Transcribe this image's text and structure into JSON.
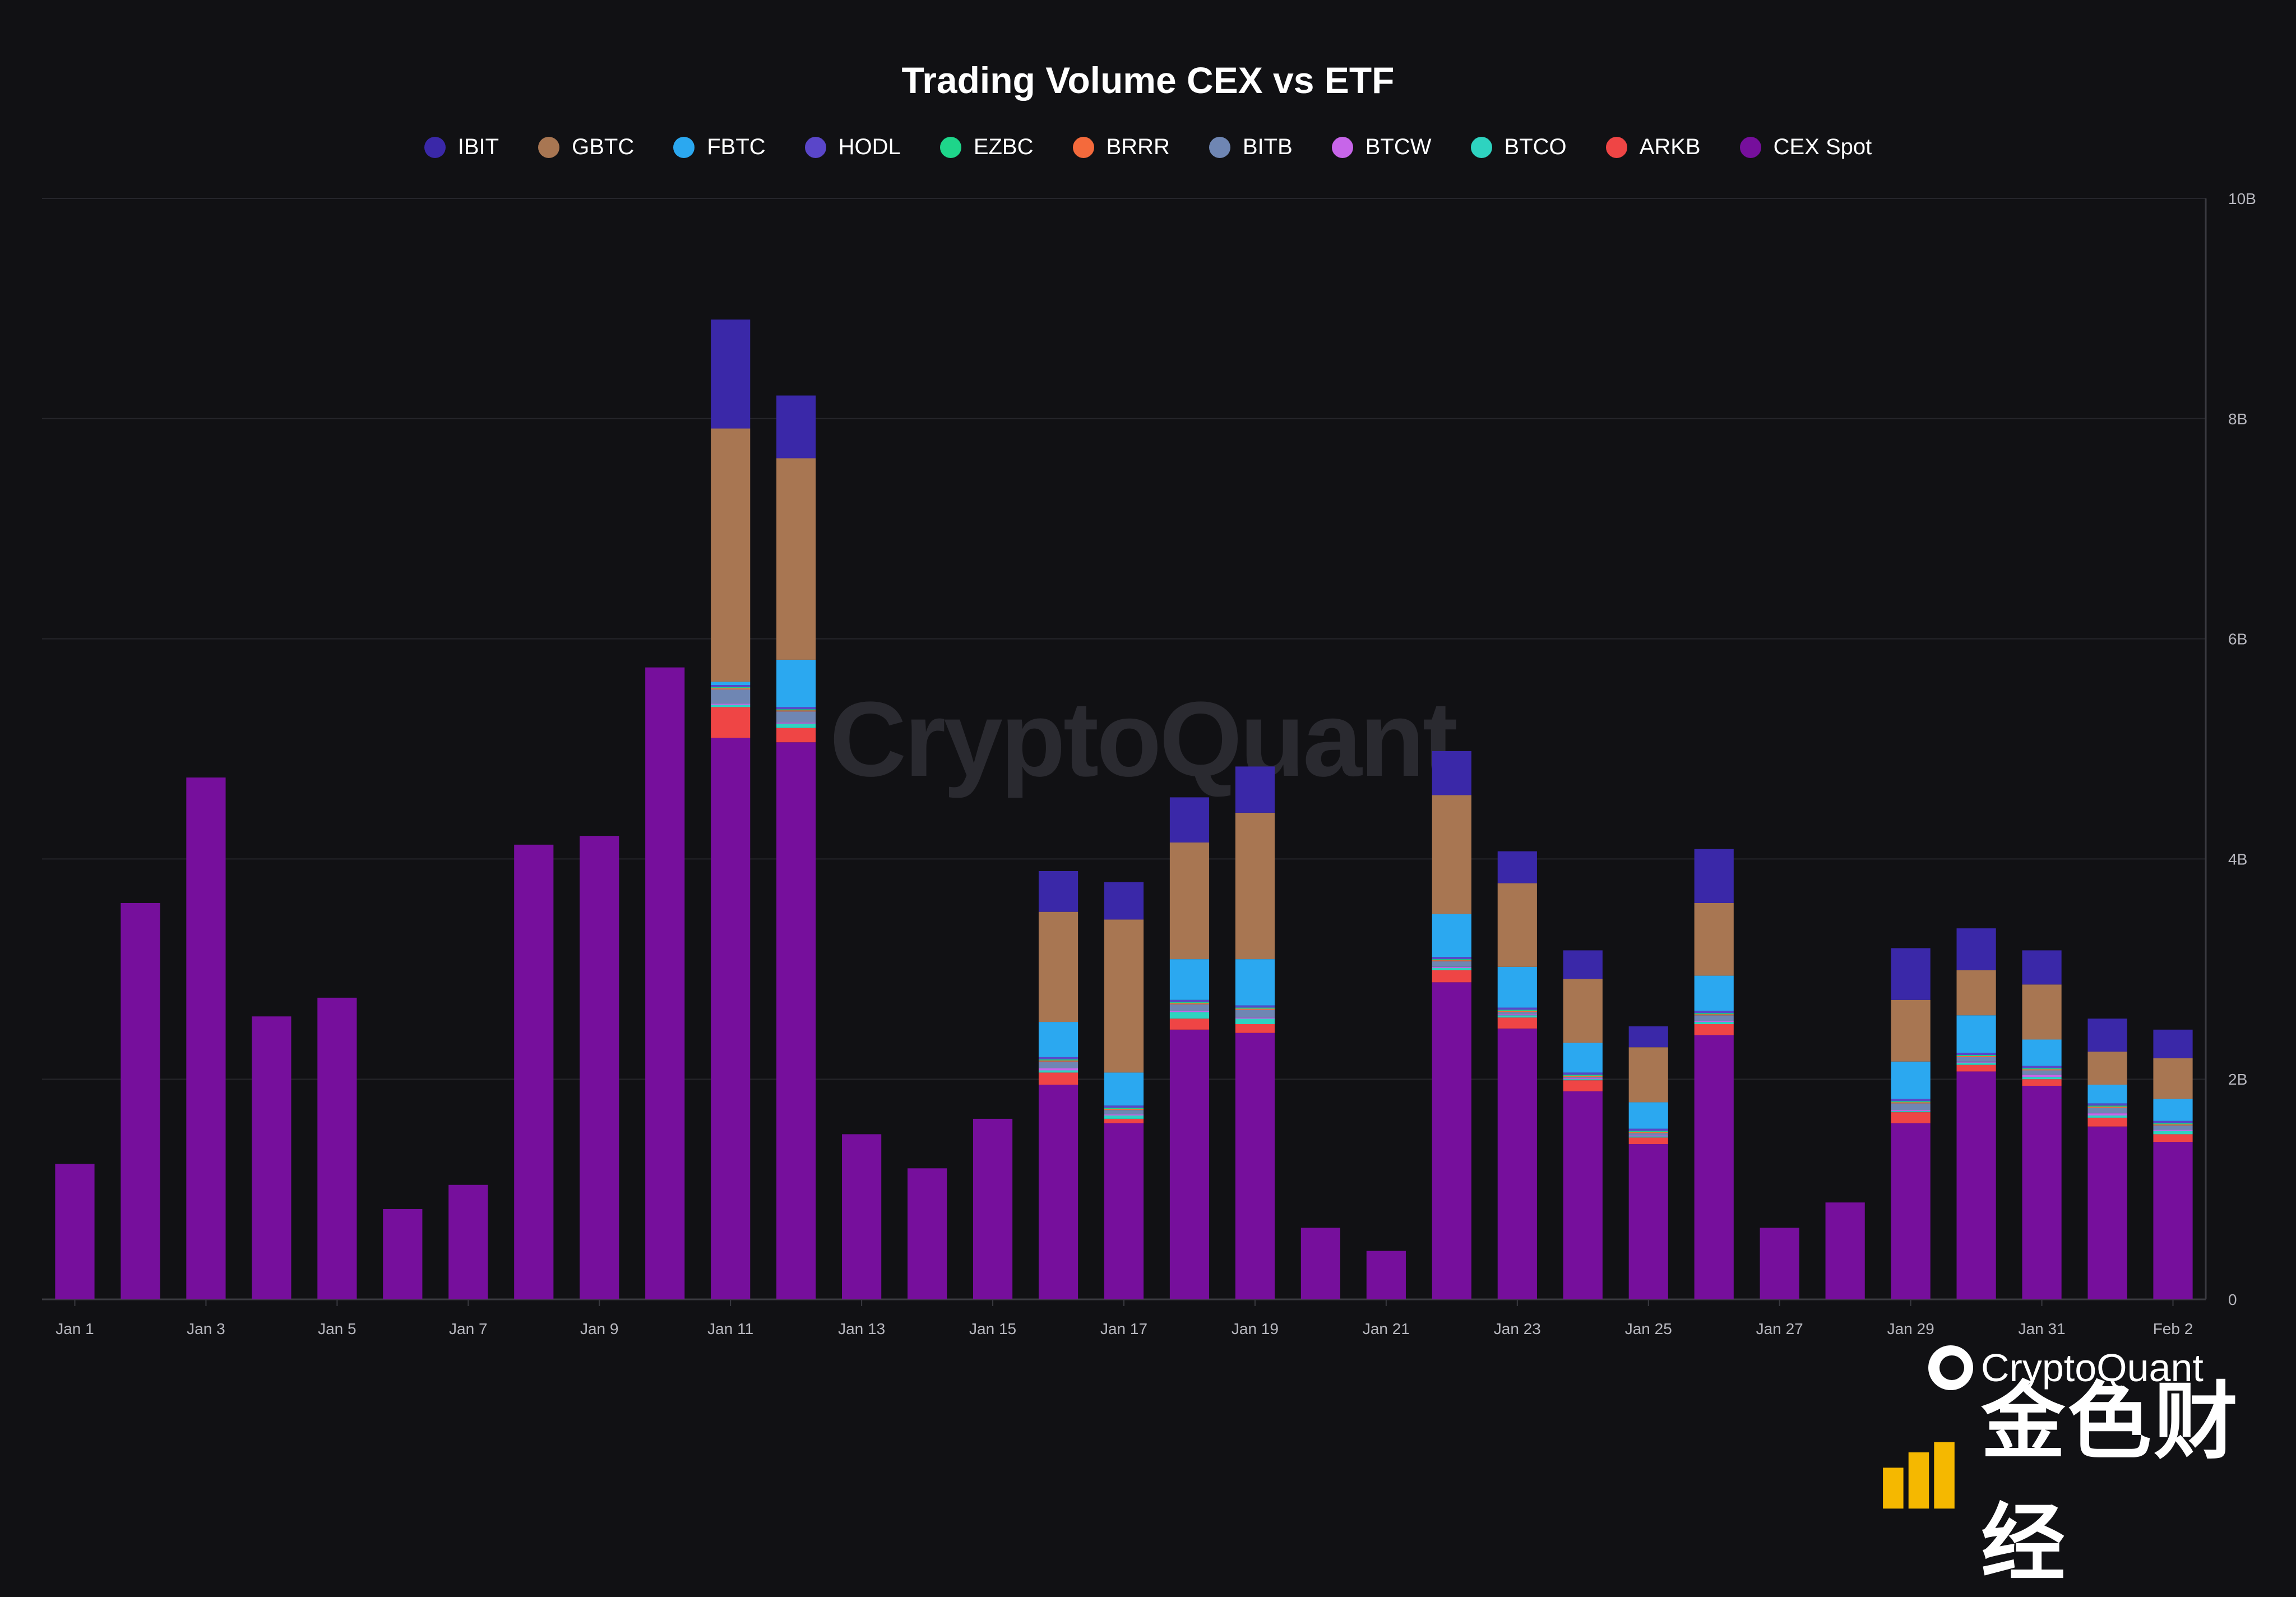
{
  "colors": {
    "IBIT": "#3a28a8",
    "GBTC": "#a87652",
    "FBTC": "#2ba8f0",
    "HODL": "#5a46c9",
    "EZBC": "#1ed58a",
    "BRRR": "#f46a3c",
    "BITB": "#6f86b3",
    "BTCW": "#c765e9",
    "BTCO": "#2ed3c0",
    "ARKB": "#ef4545",
    "CEX Spot": "#760f9c",
    "background": "#111114",
    "grid": "#26262b"
  },
  "legend": [
    {
      "name": "IBIT",
      "color": "#3a28a8"
    },
    {
      "name": "GBTC",
      "color": "#a87652"
    },
    {
      "name": "FBTC",
      "color": "#2ba8f0"
    },
    {
      "name": "HODL",
      "color": "#5a46c9"
    },
    {
      "name": "EZBC",
      "color": "#1ed58a"
    },
    {
      "name": "BRRR",
      "color": "#f46a3c"
    },
    {
      "name": "BITB",
      "color": "#6f86b3"
    },
    {
      "name": "BTCW",
      "color": "#c765e9"
    },
    {
      "name": "BTCO",
      "color": "#2ed3c0"
    },
    {
      "name": "ARKB",
      "color": "#ef4545"
    },
    {
      "name": "CEX Spot",
      "color": "#760f9c"
    }
  ],
  "watermark": "CryptoQuant",
  "brand": "CryptoQuant",
  "jinse_brand": "金色财经",
  "chart_data": {
    "type": "bar",
    "stacked": true,
    "title": "Trading Volume CEX vs ETF",
    "xlabel": "",
    "ylabel": "",
    "ylim": [
      0,
      10
    ],
    "y_unit": "B",
    "y_ticks": [
      "0",
      "2B",
      "4B",
      "6B",
      "8B",
      "10B"
    ],
    "y_axis_side": "right",
    "grid": true,
    "legend_position": "top",
    "x_tick_labels": [
      "Jan 1",
      "Jan 3",
      "Jan 5",
      "Jan 7",
      "Jan 9",
      "Jan 11",
      "Jan 13",
      "Jan 15",
      "Jan 17",
      "Jan 19",
      "Jan 21",
      "Jan 23",
      "Jan 25",
      "Jan 27",
      "Jan 29",
      "Jan 31",
      "Feb 2"
    ],
    "categories": [
      "Jan 1",
      "Jan 2",
      "Jan 3",
      "Jan 4",
      "Jan 5",
      "Jan 6",
      "Jan 7",
      "Jan 8",
      "Jan 9",
      "Jan 10",
      "Jan 11",
      "Jan 12",
      "Jan 13",
      "Jan 14",
      "Jan 15",
      "Jan 16",
      "Jan 17",
      "Jan 18",
      "Jan 19",
      "Jan 20",
      "Jan 21",
      "Jan 22",
      "Jan 23",
      "Jan 24",
      "Jan 25",
      "Jan 26",
      "Jan 27",
      "Jan 28",
      "Jan 29",
      "Jan 30",
      "Jan 31",
      "Feb 1",
      "Feb 2"
    ],
    "series": [
      {
        "name": "CEX Spot",
        "values": [
          1.23,
          3.6,
          4.74,
          2.57,
          2.74,
          0.82,
          1.04,
          4.13,
          4.21,
          5.74,
          5.1,
          5.06,
          1.5,
          1.19,
          1.64,
          1.95,
          1.6,
          2.45,
          2.42,
          0.65,
          0.44,
          2.88,
          2.46,
          1.89,
          1.41,
          2.4,
          0.65,
          0.88,
          1.6,
          2.07,
          1.94,
          1.57,
          1.43
        ]
      },
      {
        "name": "ARKB",
        "values": [
          0,
          0,
          0,
          0,
          0,
          0,
          0,
          0,
          0,
          0,
          0.28,
          0.13,
          0,
          0,
          0,
          0.11,
          0.04,
          0.1,
          0.08,
          0,
          0,
          0.11,
          0.1,
          0.1,
          0.06,
          0.1,
          0,
          0,
          0.1,
          0.06,
          0.06,
          0.08,
          0.07
        ]
      },
      {
        "name": "BTCO",
        "values": [
          0,
          0,
          0,
          0,
          0,
          0,
          0,
          0,
          0,
          0,
          0.02,
          0.04,
          0,
          0,
          0,
          0.02,
          0.03,
          0.06,
          0.05,
          0,
          0,
          0.02,
          0.02,
          0.01,
          0.01,
          0.02,
          0,
          0,
          0.01,
          0.02,
          0.02,
          0.02,
          0.03
        ]
      },
      {
        "name": "BTCW",
        "values": [
          0,
          0,
          0,
          0,
          0,
          0,
          0,
          0,
          0,
          0,
          0.01,
          0.01,
          0,
          0,
          0,
          0.02,
          0.01,
          0.01,
          0.01,
          0,
          0,
          0.01,
          0.01,
          0.01,
          0.01,
          0.01,
          0,
          0,
          0.01,
          0.01,
          0.02,
          0.02,
          0.01
        ]
      },
      {
        "name": "BITB",
        "values": [
          0,
          0,
          0,
          0,
          0,
          0,
          0,
          0,
          0,
          0,
          0.13,
          0.1,
          0,
          0,
          0,
          0.06,
          0.04,
          0.06,
          0.07,
          0,
          0,
          0.05,
          0.02,
          0.01,
          0.02,
          0.05,
          0,
          0,
          0.06,
          0.04,
          0.04,
          0.05,
          0.04
        ]
      },
      {
        "name": "BRRR",
        "values": [
          0,
          0,
          0,
          0,
          0,
          0,
          0,
          0,
          0,
          0,
          0.01,
          0.01,
          0,
          0,
          0,
          0.01,
          0.01,
          0.01,
          0.01,
          0,
          0,
          0.01,
          0.01,
          0.01,
          0.01,
          0.01,
          0,
          0,
          0.01,
          0.01,
          0.01,
          0.01,
          0.01
        ]
      },
      {
        "name": "EZBC",
        "values": [
          0,
          0,
          0,
          0,
          0,
          0,
          0,
          0,
          0,
          0,
          0.01,
          0.01,
          0,
          0,
          0,
          0.01,
          0.01,
          0.01,
          0.01,
          0,
          0,
          0.01,
          0.01,
          0.01,
          0.01,
          0.01,
          0,
          0,
          0.01,
          0.01,
          0.01,
          0.01,
          0.01
        ]
      },
      {
        "name": "HODL",
        "values": [
          0,
          0,
          0,
          0,
          0,
          0,
          0,
          0,
          0,
          0,
          0.02,
          0.02,
          0,
          0,
          0,
          0.02,
          0.02,
          0.02,
          0.02,
          0,
          0,
          0.02,
          0.02,
          0.02,
          0.02,
          0.02,
          0,
          0,
          0.02,
          0.02,
          0.02,
          0.02,
          0.02
        ]
      },
      {
        "name": "FBTC",
        "values": [
          0,
          0,
          0,
          0,
          0,
          0,
          0,
          0,
          0,
          0,
          0.03,
          0.43,
          0,
          0,
          0,
          0.32,
          0.3,
          0.37,
          0.42,
          0,
          0,
          0.39,
          0.37,
          0.27,
          0.24,
          0.32,
          0,
          0,
          0.34,
          0.34,
          0.24,
          0.17,
          0.2
        ]
      },
      {
        "name": "GBTC",
        "values": [
          0,
          0,
          0,
          0,
          0,
          0,
          0,
          0,
          0,
          0,
          2.3,
          1.83,
          0,
          0,
          0,
          1,
          1.39,
          1.06,
          1.33,
          0,
          0,
          1.08,
          0.76,
          0.58,
          0.5,
          0.66,
          0,
          0,
          0.56,
          0.41,
          0.5,
          0.3,
          0.37
        ]
      },
      {
        "name": "IBIT",
        "values": [
          0,
          0,
          0,
          0,
          0,
          0,
          0,
          0,
          0,
          0,
          0.99,
          0.57,
          0,
          0,
          0,
          0.37,
          0.34,
          0.41,
          0.42,
          0,
          0,
          0.4,
          0.29,
          0.26,
          0.19,
          0.49,
          0,
          0,
          0.47,
          0.38,
          0.31,
          0.3,
          0.26
        ]
      }
    ]
  }
}
